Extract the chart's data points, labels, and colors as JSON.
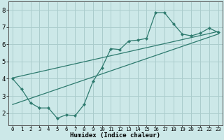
{
  "title": "",
  "xlabel": "Humidex (Indice chaleur)",
  "ylabel": "",
  "bg_color": "#cce8e8",
  "grid_color": "#aacccc",
  "line_color": "#2d7a6e",
  "line1_x": [
    0,
    1,
    2,
    3,
    4,
    5,
    6,
    7,
    8,
    9,
    10,
    11,
    12,
    13,
    14,
    15,
    16,
    17,
    18,
    19,
    20,
    21,
    22,
    23
  ],
  "line1_y": [
    4.0,
    3.4,
    2.6,
    2.3,
    2.3,
    1.7,
    1.9,
    1.85,
    2.5,
    3.85,
    4.65,
    5.75,
    5.7,
    6.2,
    6.25,
    6.35,
    7.85,
    7.85,
    7.2,
    6.6,
    6.5,
    6.65,
    6.95,
    6.7
  ],
  "line2_x": [
    0,
    23
  ],
  "line2_y": [
    4.05,
    6.75
  ],
  "line3_x": [
    0,
    23
  ],
  "line3_y": [
    2.5,
    6.6
  ],
  "xlim": [
    -0.5,
    23.5
  ],
  "ylim": [
    1.3,
    8.5
  ],
  "xticks": [
    0,
    1,
    2,
    3,
    4,
    5,
    6,
    7,
    8,
    9,
    10,
    11,
    12,
    13,
    14,
    15,
    16,
    17,
    18,
    19,
    20,
    21,
    22,
    23
  ],
  "yticks": [
    2,
    3,
    4,
    5,
    6,
    7,
    8
  ],
  "xlabel_fontsize": 6.5,
  "tick_fontsize_x": 5.2,
  "tick_fontsize_y": 6.5
}
